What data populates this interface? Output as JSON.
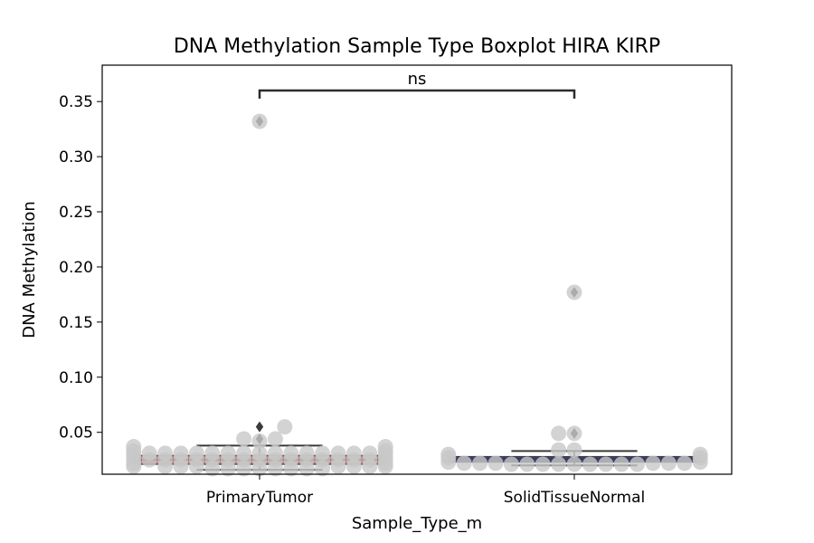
{
  "chart_data": {
    "type": "box",
    "title": "DNA Methylation Sample Type Boxplot HIRA KIRP",
    "xlabel": "Sample_Type_m",
    "ylabel": "DNA Methylation",
    "ylim": [
      0.012,
      0.383
    ],
    "yticks": [
      0.05,
      0.1,
      0.15,
      0.2,
      0.25,
      0.3,
      0.35
    ],
    "ytick_labels": [
      "0.05",
      "0.10",
      "0.15",
      "0.20",
      "0.25",
      "0.30",
      "0.35"
    ],
    "categories": [
      "PrimaryTumor",
      "SolidTissueNormal"
    ],
    "boxes": [
      {
        "category": "PrimaryTumor",
        "color": "#c27b7b",
        "whisker_low": 0.016,
        "q1": 0.021,
        "median": 0.025,
        "q3": 0.029,
        "whisker_high": 0.038,
        "outliers": [
          0.044,
          0.055,
          0.332
        ]
      },
      {
        "category": "SolidTissueNormal",
        "color": "#3d3f8a",
        "whisker_low": 0.02,
        "q1": 0.023,
        "median": 0.026,
        "q3": 0.028,
        "whisker_high": 0.033,
        "outliers": [
          0.049,
          0.177
        ]
      }
    ],
    "swarm": [
      {
        "category": "PrimaryTumor",
        "points": [
          [
            -0.4,
            0.019
          ],
          [
            -0.4,
            0.022
          ],
          [
            -0.4,
            0.026
          ],
          [
            -0.4,
            0.03
          ],
          [
            -0.4,
            0.033
          ],
          [
            -0.4,
            0.037
          ],
          [
            -0.35,
            0.025
          ],
          [
            -0.35,
            0.031
          ],
          [
            -0.3,
            0.019
          ],
          [
            -0.3,
            0.025
          ],
          [
            -0.3,
            0.031
          ],
          [
            -0.25,
            0.019
          ],
          [
            -0.25,
            0.025
          ],
          [
            -0.25,
            0.031
          ],
          [
            -0.2,
            0.019
          ],
          [
            -0.2,
            0.025
          ],
          [
            -0.2,
            0.031
          ],
          [
            -0.15,
            0.017
          ],
          [
            -0.15,
            0.025
          ],
          [
            -0.15,
            0.031
          ],
          [
            -0.1,
            0.017
          ],
          [
            -0.1,
            0.025
          ],
          [
            -0.1,
            0.031
          ],
          [
            -0.05,
            0.017
          ],
          [
            -0.05,
            0.025
          ],
          [
            -0.05,
            0.031
          ],
          [
            -0.05,
            0.044
          ],
          [
            0.0,
            0.017
          ],
          [
            0.0,
            0.025
          ],
          [
            0.0,
            0.031
          ],
          [
            0.0,
            0.042
          ],
          [
            0.0,
            0.332
          ],
          [
            0.05,
            0.017
          ],
          [
            0.05,
            0.025
          ],
          [
            0.05,
            0.031
          ],
          [
            0.05,
            0.044
          ],
          [
            0.08,
            0.055
          ],
          [
            0.1,
            0.017
          ],
          [
            0.1,
            0.025
          ],
          [
            0.1,
            0.031
          ],
          [
            0.15,
            0.017
          ],
          [
            0.15,
            0.025
          ],
          [
            0.15,
            0.031
          ],
          [
            0.2,
            0.017
          ],
          [
            0.2,
            0.025
          ],
          [
            0.2,
            0.031
          ],
          [
            0.25,
            0.019
          ],
          [
            0.25,
            0.025
          ],
          [
            0.25,
            0.031
          ],
          [
            0.3,
            0.019
          ],
          [
            0.3,
            0.025
          ],
          [
            0.3,
            0.031
          ],
          [
            0.35,
            0.019
          ],
          [
            0.35,
            0.025
          ],
          [
            0.35,
            0.031
          ],
          [
            0.4,
            0.019
          ],
          [
            0.4,
            0.022
          ],
          [
            0.4,
            0.026
          ],
          [
            0.4,
            0.03
          ],
          [
            0.4,
            0.033
          ],
          [
            0.4,
            0.037
          ]
        ]
      },
      {
        "category": "SolidTissueNormal",
        "points": [
          [
            -0.4,
            0.023
          ],
          [
            -0.4,
            0.027
          ],
          [
            -0.4,
            0.03
          ],
          [
            -0.35,
            0.022
          ],
          [
            -0.3,
            0.022
          ],
          [
            -0.25,
            0.022
          ],
          [
            -0.2,
            0.021
          ],
          [
            -0.15,
            0.021
          ],
          [
            -0.1,
            0.021
          ],
          [
            -0.05,
            0.021
          ],
          [
            0.0,
            0.021
          ],
          [
            -0.05,
            0.034
          ],
          [
            0.0,
            0.034
          ],
          [
            -0.05,
            0.049
          ],
          [
            0.0,
            0.049
          ],
          [
            0.0,
            0.177
          ],
          [
            0.05,
            0.021
          ],
          [
            0.1,
            0.021
          ],
          [
            0.15,
            0.021
          ],
          [
            0.2,
            0.021
          ],
          [
            0.25,
            0.022
          ],
          [
            0.3,
            0.022
          ],
          [
            0.35,
            0.022
          ],
          [
            0.4,
            0.023
          ],
          [
            0.4,
            0.027
          ],
          [
            0.4,
            0.03
          ]
        ]
      }
    ],
    "annotation": {
      "text": "ns",
      "between": [
        "PrimaryTumor",
        "SolidTissueNormal"
      ],
      "y": 0.36
    },
    "grid": false
  }
}
